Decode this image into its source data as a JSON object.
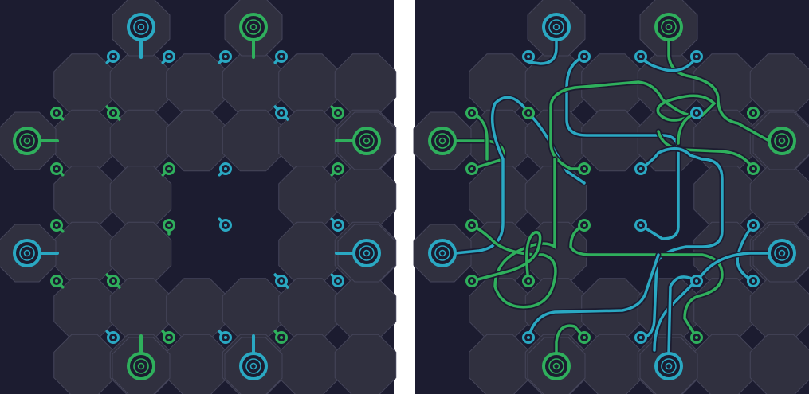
{
  "colors": {
    "background": "#1c1c30",
    "separator": "#ffffff",
    "tile": "#30303f",
    "tile_edge": "#45455a",
    "wire_blue": "#2aa8c2",
    "wire_green": "#2faf5c"
  },
  "puzzle_panel": {
    "state": "unsolved",
    "cells": [
      [
        0,
        "O"
      ],
      [
        1,
        "O"
      ],
      [
        3,
        "O"
      ],
      [
        4,
        "O"
      ],
      [
        5,
        "O"
      ],
      [
        6,
        "O"
      ],
      [
        7,
        "O"
      ],
      [
        8,
        "O"
      ],
      [
        9,
        "O"
      ],
      [
        10,
        "O"
      ],
      [
        11,
        "O"
      ],
      [
        12,
        "O"
      ],
      [
        13,
        "O"
      ],
      [
        14,
        "O"
      ],
      [
        15,
        "O"
      ]
    ]
  },
  "solution_panel": {
    "state": "solved"
  },
  "terminals": [
    {
      "id": "t1",
      "color": "blue"
    },
    {
      "id": "t2",
      "color": "green"
    },
    {
      "id": "t3",
      "color": "green"
    },
    {
      "id": "t4",
      "color": "green"
    },
    {
      "id": "t5",
      "color": "blue"
    },
    {
      "id": "t6",
      "color": "blue"
    },
    {
      "id": "t7",
      "color": "green"
    },
    {
      "id": "t8",
      "color": "blue"
    }
  ],
  "connectors_left": [
    {
      "id": "c1",
      "color": "blue",
      "icon": "pin-icon"
    },
    {
      "id": "c2",
      "color": "blue",
      "icon": "pin-icon"
    },
    {
      "id": "c3",
      "color": "blue",
      "icon": "pin-icon"
    },
    {
      "id": "c4",
      "color": "blue",
      "icon": "pin-icon"
    },
    {
      "id": "c5",
      "color": "green",
      "icon": "pin-icon"
    },
    {
      "id": "c6",
      "color": "green",
      "icon": "cross-pin-icon"
    },
    {
      "id": "c7",
      "color": "blue",
      "icon": "cross-pin-icon"
    },
    {
      "id": "c8",
      "color": "green",
      "icon": "pin-icon"
    },
    {
      "id": "c9",
      "color": "green",
      "icon": "pin-icon"
    },
    {
      "id": "c10",
      "color": "green",
      "icon": "pin-icon"
    },
    {
      "id": "c11",
      "color": "blue",
      "icon": "pin-icon"
    },
    {
      "id": "c12",
      "color": "green",
      "icon": "pin-icon"
    },
    {
      "id": "c13",
      "color": "green",
      "icon": "pin-icon"
    },
    {
      "id": "c14",
      "color": "green",
      "icon": "pin-icon"
    },
    {
      "id": "c15",
      "color": "blue",
      "icon": "pin-icon"
    },
    {
      "id": "c16",
      "color": "blue",
      "icon": "pin-icon"
    },
    {
      "id": "c17",
      "color": "green",
      "icon": "pin-icon"
    },
    {
      "id": "c18",
      "color": "green",
      "icon": "cross-pin-icon"
    },
    {
      "id": "c19",
      "color": "blue",
      "icon": "cross-pin-icon"
    },
    {
      "id": "c20",
      "color": "blue",
      "icon": "pin-icon"
    },
    {
      "id": "c21",
      "color": "blue",
      "icon": "pin-icon"
    },
    {
      "id": "c22",
      "color": "green",
      "icon": "pin-icon"
    },
    {
      "id": "c23",
      "color": "blue",
      "icon": "pin-icon"
    },
    {
      "id": "c24",
      "color": "green",
      "icon": "pin-icon"
    }
  ]
}
